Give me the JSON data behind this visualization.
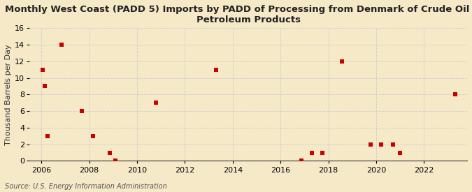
{
  "title_line1": "Monthly West Coast (PADD 5) Imports by PADD of Processing from Denmark of Crude Oil and",
  "title_line2": "Petroleum Products",
  "ylabel": "Thousand Barrels per Day",
  "source": "Source: U.S. Energy Information Administration",
  "background_color": "#f5e9c8",
  "plot_bg_color": "#f5e9c8",
  "dot_color": "#cc0000",
  "grid_color": "#cccccc",
  "xlim": [
    2005.5,
    2023.8
  ],
  "ylim": [
    0,
    16
  ],
  "xticks": [
    2006,
    2008,
    2010,
    2012,
    2014,
    2016,
    2018,
    2020,
    2022
  ],
  "yticks": [
    0,
    2,
    4,
    6,
    8,
    10,
    12,
    14,
    16
  ],
  "x_data": [
    2006.05,
    2006.15,
    2006.25,
    2006.85,
    2007.7,
    2008.15,
    2008.85,
    2009.1,
    2010.8,
    2013.3,
    2016.88,
    2017.3,
    2017.75,
    2018.55,
    2019.75,
    2020.2,
    2020.7,
    2021.0,
    2023.3
  ],
  "y_data": [
    11,
    9,
    3,
    14,
    6,
    3,
    1,
    0,
    7,
    11,
    0,
    1,
    1,
    12,
    2,
    2,
    2,
    1,
    8
  ],
  "marker_size": 25,
  "title_fontsize": 9.5,
  "axis_fontsize": 8,
  "tick_fontsize": 8,
  "source_fontsize": 7
}
